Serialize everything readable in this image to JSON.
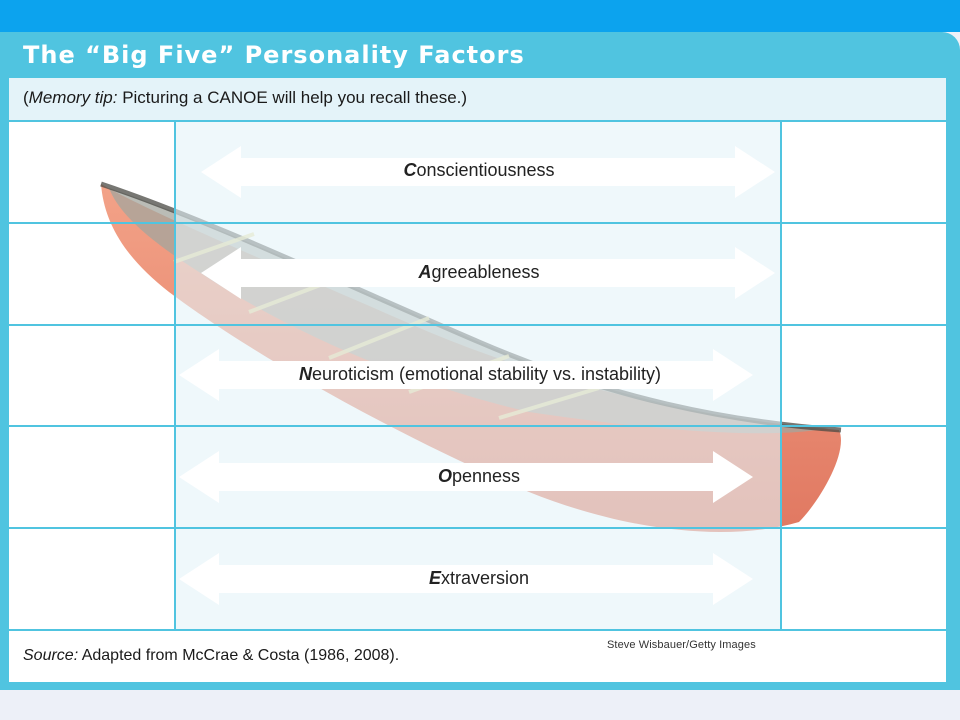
{
  "title": "The “Big Five” Personality Factors",
  "memory_tip": {
    "lead": "Memory tip:",
    "text": " Picturing a CANOE will help you recall these.)",
    "open": "("
  },
  "factors": [
    {
      "initial": "C",
      "rest": "onscientiousness"
    },
    {
      "initial": "A",
      "rest": "greeableness"
    },
    {
      "initial": "N",
      "rest": "euroticism (emotional stability vs. instability)"
    },
    {
      "initial": "O",
      "rest": "penness"
    },
    {
      "initial": "E",
      "rest": "xtraversion"
    }
  ],
  "source": {
    "lead": "Source:",
    "text": " Adapted from McCrae & Costa (1986, 2008)."
  },
  "photo_credit": "Steve Wisbauer/Getty Images",
  "colors": {
    "panel": "#50c4e0",
    "top_bar": "#0ca3ee",
    "canoe_hull": "#e06a4a",
    "center_column": "#e4f3f9"
  }
}
